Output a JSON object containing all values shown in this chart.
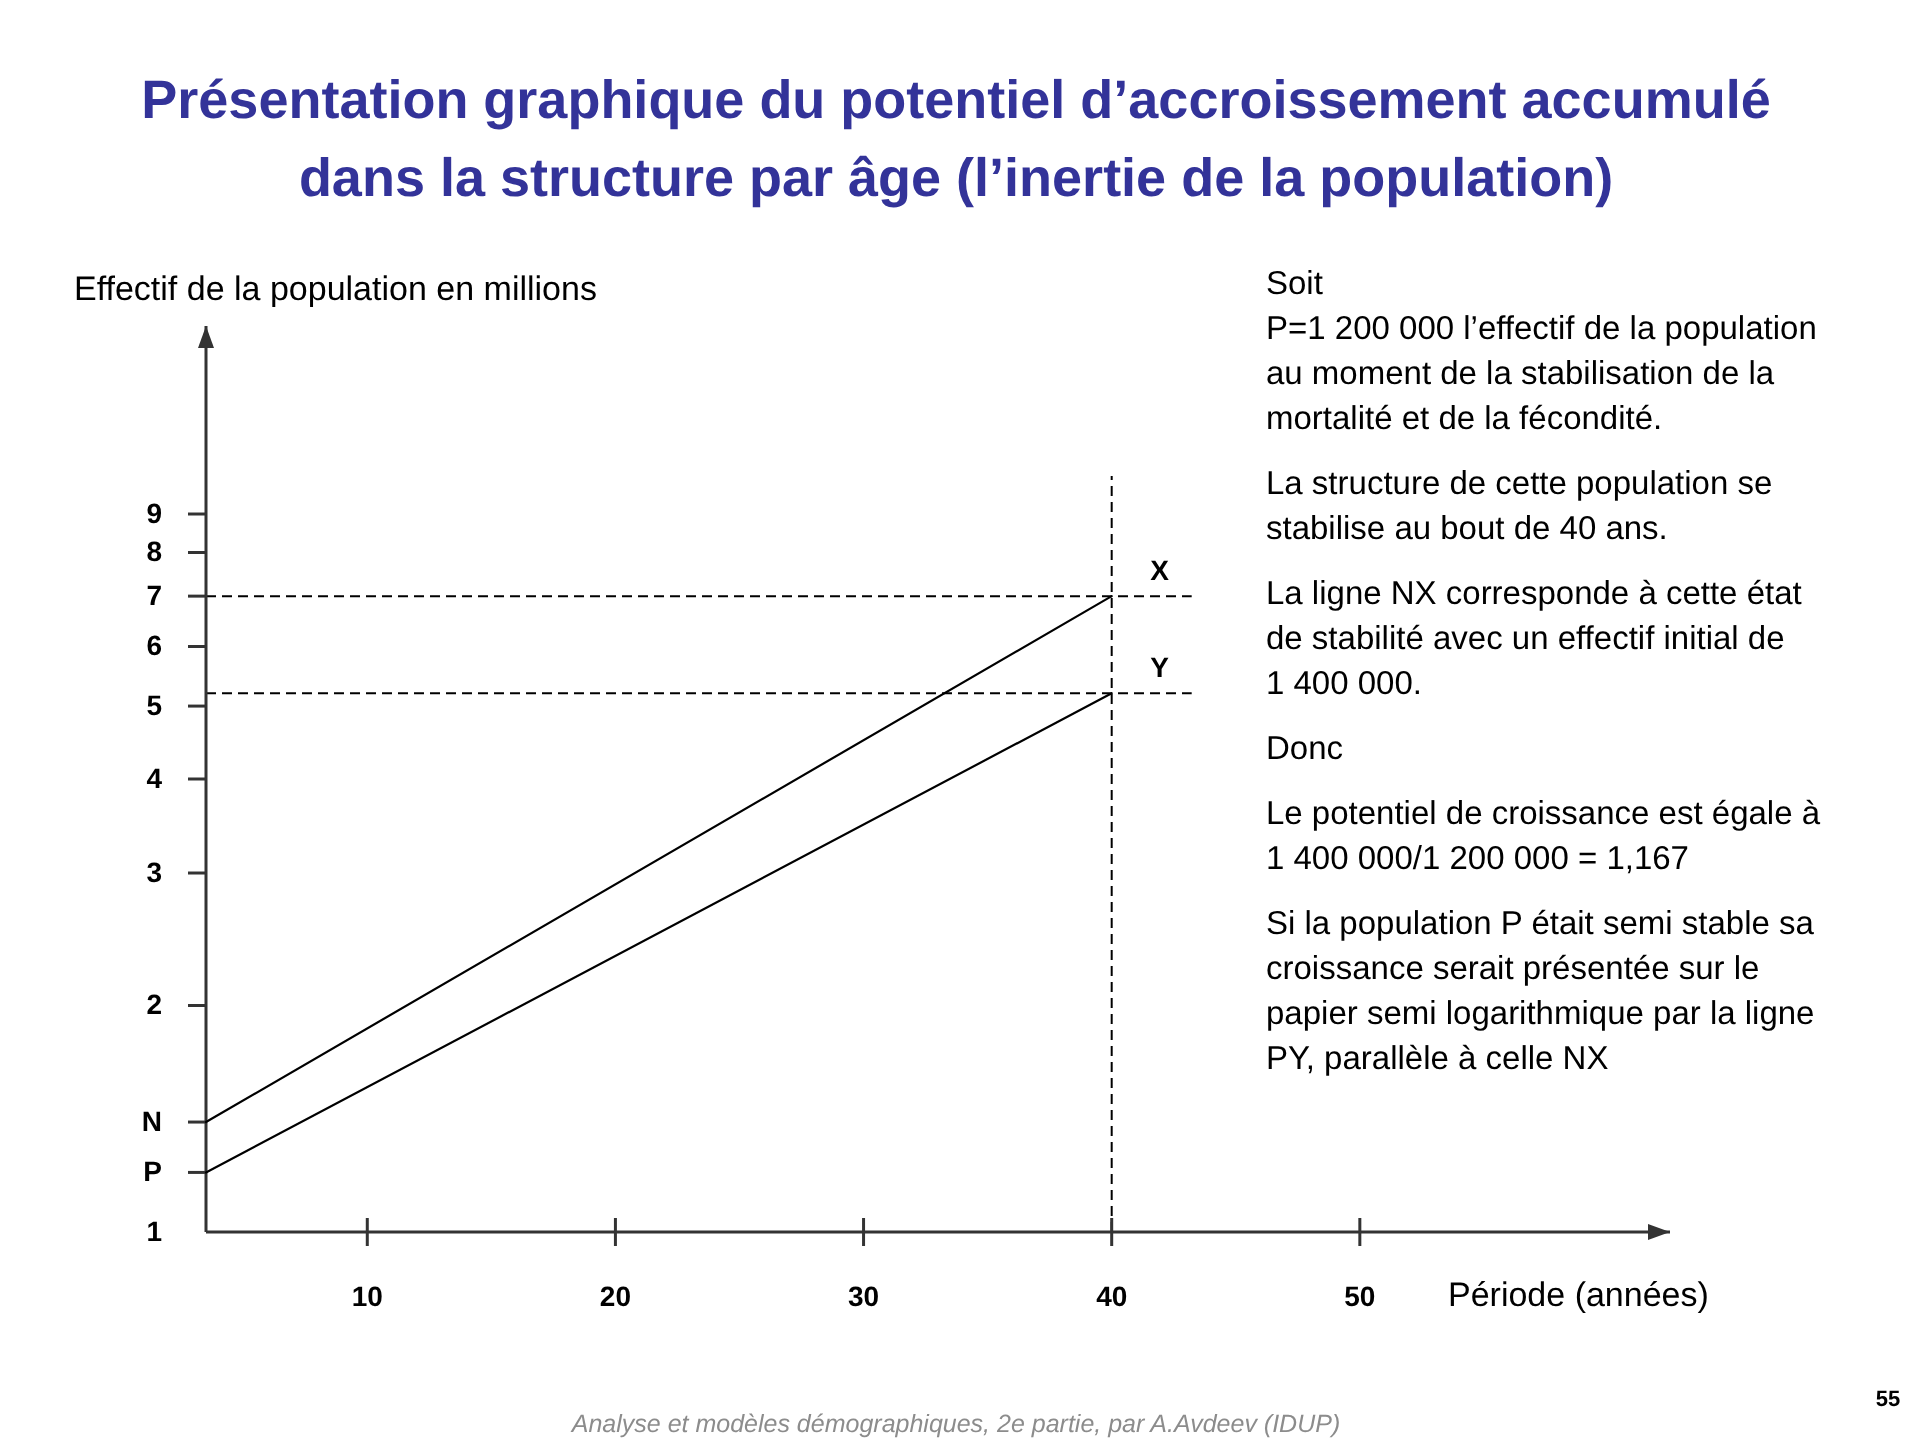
{
  "chart_data": {
    "type": "line",
    "title": "Présentation graphique du potentiel d’accroissement accumulé dans la structure par âge (l’inertie de la population)",
    "xlabel": "Période (années)",
    "ylabel": "Effectif de la population en millions",
    "log": "y",
    "xlim": [
      3.5,
      62.5
    ],
    "xticks": [
      10,
      20,
      30,
      40,
      50
    ],
    "ylim": [
      1,
      16
    ],
    "yticks": [
      1,
      {
        "value": 1.2,
        "label": "P"
      },
      {
        "value": 1.4,
        "label": "N"
      },
      2,
      3,
      4,
      5,
      6,
      7,
      8,
      9
    ],
    "x": [
      3.5,
      40
    ],
    "series": [
      {
        "color": "#000000",
        "values": [
          1.4,
          7
        ]
      },
      {
        "color": "#000000",
        "values": [
          1.2,
          5.2
        ]
      }
    ],
    "ref_lines": [
      {
        "axis": "x",
        "value": 40,
        "line_style": "dashed",
        "color": "#000000"
      },
      {
        "axis": "y",
        "value": 7,
        "line_style": "dashed",
        "color": "#000000"
      },
      {
        "axis": "y",
        "value": 5.2,
        "line_style": "dashed",
        "color": "#000000"
      }
    ],
    "annotations": [
      "Soit\nP=1 200 000 l’effectif de la population au moment de la stabilisation de la mortalité et de la fécondité.",
      "La structure de cette population se stabilise au bout de 40 ans.",
      "La ligne NX corresponde à cette état de stabilité avec un effectif initial de 1 400 000.",
      "Donc",
      "Le potentiel de croissance est égale à 1 400 000/1 200 000 = 1,167",
      "Si la population P était semi stable sa croissance serait présentée sur le papier semi logarithmique par la ligne PY, parallèle à celle NX",
      {
        "text": "X",
        "x": 40,
        "y": 7
      },
      {
        "text": "Y",
        "x": 40,
        "y": 5.2
      },
      "55",
      "Analyse et modèles démographiques, 2e partie, par A.Avdeev (IDUP)"
    ]
  }
}
